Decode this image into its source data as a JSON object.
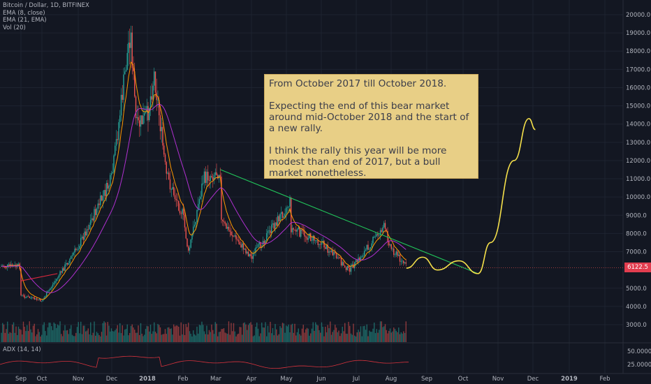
{
  "header": {
    "symbol": "Bitcoin / Dollar, 1D, BITFINEX",
    "indicators": [
      "EMA (8, close)",
      "EMA (21, EMA)",
      "Vol (20)"
    ],
    "adx_label": "ADX (14, 14)"
  },
  "note": {
    "paragraphs": [
      "From October 2017 till October 2018.",
      "Expecting the end of this bear market around mid-October 2018 and the start of a new rally.",
      "I think the rally this year will be more modest than end of 2017, but a bull market nonetheless."
    ]
  },
  "colors": {
    "background": "#131722",
    "grid": "#1e2330",
    "candle_up": "#26a69a",
    "candle_down": "#ef5350",
    "ema_fast": "#ff9800",
    "ema_slow": "#b030d0",
    "resistance_line": "#21c45a",
    "support_line": "#e0293d",
    "projection": "#f5e04a",
    "adx": "#d8333d",
    "note_bg": "#e8cf86"
  },
  "chart_data": {
    "type": "candlestick",
    "title": "Bitcoin / Dollar, 1D, BITFINEX",
    "current_price": "6122.5",
    "x_labels": [
      "Sep",
      "Oct",
      "Nov",
      "Dec",
      "2018",
      "Feb",
      "Mar",
      "Apr",
      "May",
      "Jun",
      "Jul",
      "Aug",
      "Sep",
      "Oct",
      "Nov",
      "Dec",
      "2019",
      "Feb"
    ],
    "y_ticks": [
      "20000.0",
      "19000.0",
      "18000.0",
      "17000.0",
      "16000.0",
      "15000.0",
      "14000.0",
      "13000.0",
      "12000.0",
      "11000.0",
      "10000.0",
      "9000.0",
      "8000.0",
      "7000.0",
      "5000.0",
      "4000.0",
      "3000.0"
    ],
    "y_range": [
      2200,
      20500
    ],
    "price_keypoints": [
      [
        "Sep",
        4600
      ],
      [
        "Oct",
        4300
      ],
      [
        "Nov",
        7300
      ],
      [
        "Dec",
        11000
      ],
      [
        "Dec 17",
        19200
      ],
      [
        "Dec 22",
        13800
      ],
      [
        "2018",
        14500
      ],
      [
        "Jan 7",
        16800
      ],
      [
        "Jan 17",
        11200
      ],
      [
        "Feb",
        9000
      ],
      [
        "Feb 6",
        6900
      ],
      [
        "Feb 20",
        11000
      ],
      [
        "Mar 5",
        11500
      ],
      [
        "Mar",
        9000
      ],
      [
        "Apr",
        6700
      ],
      [
        "May 5",
        9800
      ],
      [
        "May",
        8400
      ],
      [
        "Jun",
        7500
      ],
      [
        "Jun 25",
        6000
      ],
      [
        "Jul",
        6400
      ],
      [
        "Jul 25",
        8400
      ],
      [
        "Aug",
        7200
      ],
      [
        "Aug 14",
        6200
      ]
    ],
    "projection_keypoints": [
      [
        "Aug 14",
        6100
      ],
      [
        "Aug 28",
        6700
      ],
      [
        "Sep 10",
        6000
      ],
      [
        "Sep 28",
        6500
      ],
      [
        "Oct 14",
        5800
      ],
      [
        "Oct 25",
        7500
      ],
      [
        "Nov 15",
        12000
      ],
      [
        "Nov 28",
        14300
      ],
      [
        "Dec 3",
        13700
      ]
    ],
    "trendlines": [
      {
        "name": "resistance",
        "from": [
          "Mar 5",
          11500
        ],
        "to": [
          "Oct 14",
          5800
        ]
      },
      {
        "name": "support",
        "from": [
          "Sep",
          5400
        ],
        "to": [
          "Oct 14",
          5800
        ]
      }
    ],
    "adx_ticks": [
      "50.0000",
      "25.0000"
    ],
    "volume_series": "Vol (20)",
    "grid": true
  }
}
